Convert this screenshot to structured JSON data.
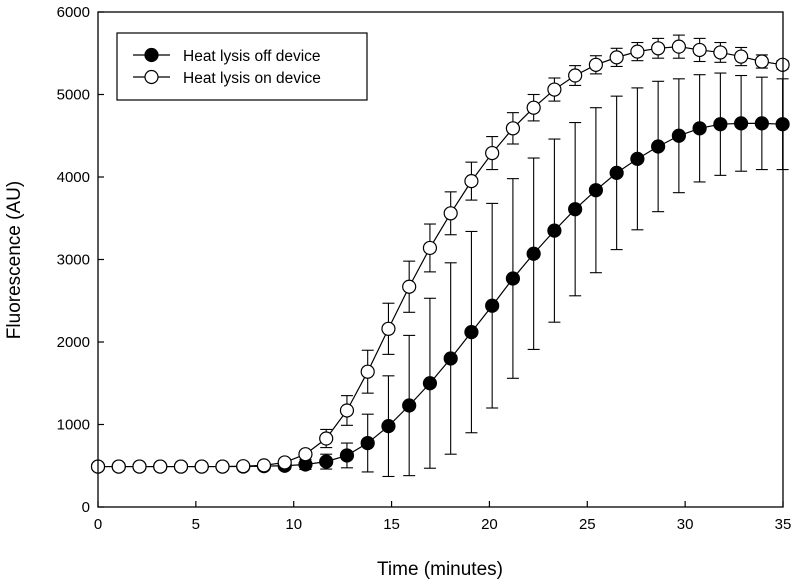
{
  "chart_data": {
    "type": "line",
    "title": "",
    "xlabel": "Time (minutes)",
    "ylabel": "Fluorescence (AU)",
    "xlim": [
      0,
      35
    ],
    "ylim": [
      0,
      6000
    ],
    "x_ticks": [
      "0",
      "5",
      "10",
      "15",
      "20",
      "25",
      "30",
      "35"
    ],
    "y_ticks": [
      "0",
      "1000",
      "2000",
      "3000",
      "4000",
      "5000",
      "6000"
    ],
    "grid": false,
    "legend_position": "top-left",
    "series": [
      {
        "name": "Heat lysis off device",
        "marker": "filled-circle",
        "color": "#000000",
        "x": [
          0,
          1.06,
          2.12,
          3.18,
          4.24,
          5.3,
          6.36,
          7.42,
          8.48,
          9.54,
          10.6,
          11.66,
          12.72,
          13.78,
          14.84,
          15.9,
          16.96,
          18.02,
          19.08,
          20.14,
          21.2,
          22.26,
          23.32,
          24.38,
          25.44,
          26.5,
          27.56,
          28.62,
          29.68,
          30.74,
          31.8,
          32.86,
          33.92,
          34.98
        ],
        "y": [
          490,
          490,
          490,
          490,
          490,
          490,
          490,
          490,
          495,
          500,
          515,
          550,
          625,
          775,
          980,
          1230,
          1500,
          1800,
          2120,
          2440,
          2770,
          3070,
          3350,
          3610,
          3840,
          4050,
          4220,
          4370,
          4500,
          4590,
          4640,
          4650,
          4650,
          4640
        ],
        "err": [
          40,
          40,
          40,
          40,
          40,
          40,
          40,
          40,
          40,
          45,
          60,
          90,
          150,
          350,
          610,
          850,
          1030,
          1160,
          1220,
          1240,
          1210,
          1160,
          1110,
          1050,
          1000,
          930,
          860,
          790,
          690,
          650,
          620,
          580,
          560,
          550
        ]
      },
      {
        "name": "Heat lysis on device",
        "marker": "open-circle",
        "color": "#000000",
        "x": [
          0,
          1.06,
          2.12,
          3.18,
          4.24,
          5.3,
          6.36,
          7.42,
          8.48,
          9.54,
          10.6,
          11.66,
          12.72,
          13.78,
          14.84,
          15.9,
          16.96,
          18.02,
          19.08,
          20.14,
          21.2,
          22.26,
          23.32,
          24.38,
          25.44,
          26.5,
          27.56,
          28.62,
          29.68,
          30.74,
          31.8,
          32.86,
          33.92,
          34.98
        ],
        "y": [
          490,
          490,
          490,
          490,
          490,
          490,
          490,
          495,
          505,
          540,
          640,
          830,
          1170,
          1640,
          2160,
          2670,
          3140,
          3560,
          3950,
          4290,
          4590,
          4840,
          5060,
          5230,
          5360,
          5450,
          5520,
          5560,
          5580,
          5540,
          5510,
          5460,
          5400,
          5360
        ],
        "err": [
          40,
          40,
          40,
          40,
          40,
          40,
          40,
          40,
          40,
          40,
          40,
          110,
          180,
          260,
          310,
          310,
          290,
          260,
          230,
          200,
          190,
          160,
          140,
          120,
          110,
          110,
          110,
          120,
          140,
          140,
          120,
          110,
          80,
          50
        ]
      }
    ]
  }
}
